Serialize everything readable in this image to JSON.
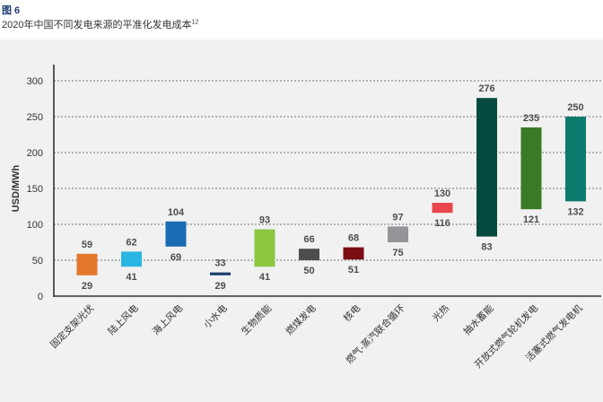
{
  "header": {
    "figure_label": "图 6",
    "title": "2020年中国不同发电来源的平准化发电成本",
    "title_sup": "12"
  },
  "chart_data": {
    "type": "bar",
    "subtype": "floating-range",
    "ylabel": "USD/MWh",
    "ylim": [
      0,
      300
    ],
    "yticks": [
      0,
      50,
      100,
      150,
      200,
      250,
      300
    ],
    "grid": true,
    "categories": [
      "固定支架光伏",
      "陆上风电",
      "海上风电",
      "小水电",
      "生物质能",
      "燃煤发电",
      "核电",
      "燃气-蒸汽联合循环",
      "光热",
      "抽水蓄能",
      "开放式燃气轮机发电",
      "活塞式燃气发电机"
    ],
    "low": [
      29,
      41,
      69,
      29,
      41,
      50,
      51,
      75,
      116,
      83,
      121,
      132
    ],
    "high": [
      59,
      62,
      104,
      33,
      93,
      66,
      68,
      97,
      130,
      276,
      235,
      250
    ],
    "colors": [
      "#e3782b",
      "#29b6e3",
      "#1a6cb5",
      "#1c3d6e",
      "#8dc63f",
      "#4d4d4f",
      "#7a0c14",
      "#939598",
      "#e8474c",
      "#064a3f",
      "#3b7a25",
      "#0d7a6e"
    ]
  }
}
